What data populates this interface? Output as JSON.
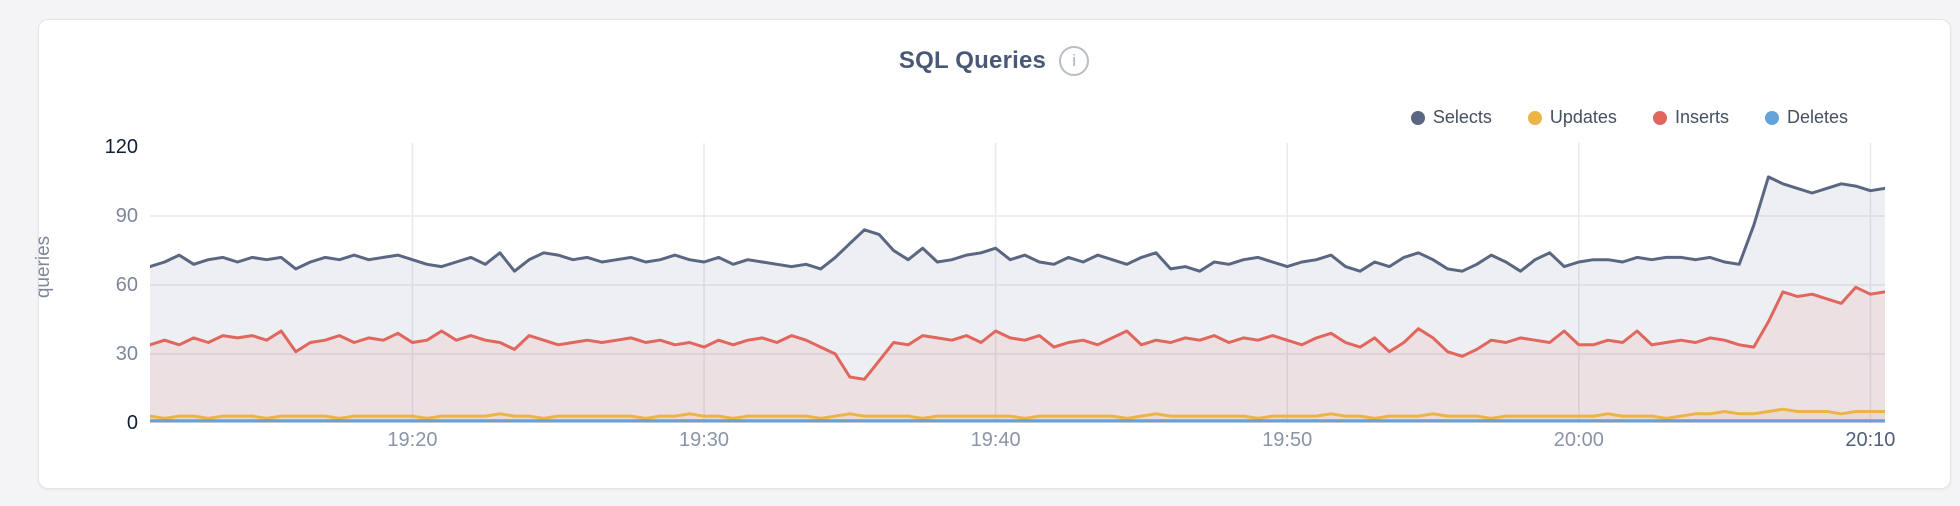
{
  "page": {
    "info_glyph": "i"
  },
  "chart_data": {
    "type": "area",
    "title": "SQL Queries",
    "ylabel": "queries",
    "ylim": [
      0,
      120
    ],
    "grid": true,
    "legend_position": "top-right",
    "y_ticks": [
      {
        "label": "120",
        "value": 120
      },
      {
        "label": "90",
        "value": 90
      },
      {
        "label": "60",
        "value": 60
      },
      {
        "label": "30",
        "value": 30
      },
      {
        "label": "0",
        "value": 0
      }
    ],
    "x_ticks": [
      {
        "label": "19:20",
        "index": 18
      },
      {
        "label": "19:30",
        "index": 38
      },
      {
        "label": "19:40",
        "index": 58
      },
      {
        "label": "19:50",
        "index": 78
      },
      {
        "label": "20:00",
        "index": 98
      },
      {
        "label": "20:10",
        "index": 118
      }
    ],
    "series": [
      {
        "name": "Selects",
        "color": "#5a6682",
        "values": [
          68,
          70,
          73,
          69,
          71,
          72,
          70,
          72,
          71,
          72,
          67,
          70,
          72,
          71,
          73,
          71,
          72,
          73,
          71,
          69,
          68,
          70,
          72,
          69,
          74,
          66,
          71,
          74,
          73,
          71,
          72,
          70,
          71,
          72,
          70,
          71,
          73,
          71,
          70,
          72,
          69,
          71,
          70,
          69,
          68,
          69,
          67,
          72,
          78,
          84,
          82,
          75,
          71,
          76,
          70,
          71,
          73,
          74,
          76,
          71,
          73,
          70,
          69,
          72,
          70,
          73,
          71,
          69,
          72,
          74,
          67,
          68,
          66,
          70,
          69,
          71,
          72,
          70,
          68,
          70,
          71,
          73,
          68,
          66,
          70,
          68,
          72,
          74,
          71,
          67,
          66,
          69,
          73,
          70,
          66,
          71,
          74,
          68,
          70,
          71,
          71,
          70,
          72,
          71,
          72,
          72,
          71,
          72,
          70,
          69,
          86,
          107,
          104,
          102,
          100,
          102,
          104,
          103,
          101,
          102
        ]
      },
      {
        "name": "Updates",
        "color": "#ecb446",
        "values": [
          3,
          2,
          3,
          3,
          2,
          3,
          3,
          3,
          2,
          3,
          3,
          3,
          3,
          2,
          3,
          3,
          3,
          3,
          3,
          2,
          3,
          3,
          3,
          3,
          4,
          3,
          3,
          2,
          3,
          3,
          3,
          3,
          3,
          3,
          2,
          3,
          3,
          4,
          3,
          3,
          2,
          3,
          3,
          3,
          3,
          3,
          2,
          3,
          4,
          3,
          3,
          3,
          3,
          2,
          3,
          3,
          3,
          3,
          3,
          3,
          2,
          3,
          3,
          3,
          3,
          3,
          3,
          2,
          3,
          4,
          3,
          3,
          3,
          3,
          3,
          3,
          2,
          3,
          3,
          3,
          3,
          4,
          3,
          3,
          2,
          3,
          3,
          3,
          4,
          3,
          3,
          3,
          2,
          3,
          3,
          3,
          3,
          3,
          3,
          3,
          4,
          3,
          3,
          3,
          2,
          3,
          4,
          4,
          5,
          4,
          4,
          5,
          6,
          5,
          5,
          5,
          4,
          5,
          5,
          5
        ]
      },
      {
        "name": "Inserts",
        "color": "#e0665e",
        "values": [
          34,
          36,
          34,
          37,
          35,
          38,
          37,
          38,
          36,
          40,
          31,
          35,
          36,
          38,
          35,
          37,
          36,
          39,
          35,
          36,
          40,
          36,
          38,
          36,
          35,
          32,
          38,
          36,
          34,
          35,
          36,
          35,
          36,
          37,
          35,
          36,
          34,
          35,
          33,
          36,
          34,
          36,
          37,
          35,
          38,
          36,
          33,
          30,
          20,
          19,
          27,
          35,
          34,
          38,
          37,
          36,
          38,
          35,
          40,
          37,
          36,
          38,
          33,
          35,
          36,
          34,
          37,
          40,
          34,
          36,
          35,
          37,
          36,
          38,
          35,
          37,
          36,
          38,
          36,
          34,
          37,
          39,
          35,
          33,
          37,
          31,
          35,
          41,
          37,
          31,
          29,
          32,
          36,
          35,
          37,
          36,
          35,
          40,
          34,
          34,
          36,
          35,
          40,
          34,
          35,
          36,
          35,
          37,
          36,
          34,
          33,
          44,
          57,
          55,
          56,
          54,
          52,
          59,
          56,
          57
        ]
      },
      {
        "name": "Deletes",
        "color": "#63a3d8",
        "values": [
          1,
          1,
          1,
          1,
          1,
          1,
          1,
          1,
          1,
          1,
          1,
          1,
          1,
          1,
          1,
          1,
          1,
          1,
          1,
          1,
          1,
          1,
          1,
          1,
          1,
          1,
          1,
          1,
          1,
          1,
          1,
          1,
          1,
          1,
          1,
          1,
          1,
          1,
          1,
          1,
          1,
          1,
          1,
          1,
          1,
          1,
          1,
          1,
          1,
          1,
          1,
          1,
          1,
          1,
          1,
          1,
          1,
          1,
          1,
          1,
          1,
          1,
          1,
          1,
          1,
          1,
          1,
          1,
          1,
          1,
          1,
          1,
          1,
          1,
          1,
          1,
          1,
          1,
          1,
          1,
          1,
          1,
          1,
          1,
          1,
          1,
          1,
          1,
          1,
          1,
          1,
          1,
          1,
          1,
          1,
          1,
          1,
          1,
          1,
          1,
          1,
          1,
          1,
          1,
          1,
          1,
          1,
          1,
          1,
          1,
          1,
          1,
          1,
          1,
          1,
          1,
          1,
          1,
          1,
          1
        ]
      }
    ]
  }
}
